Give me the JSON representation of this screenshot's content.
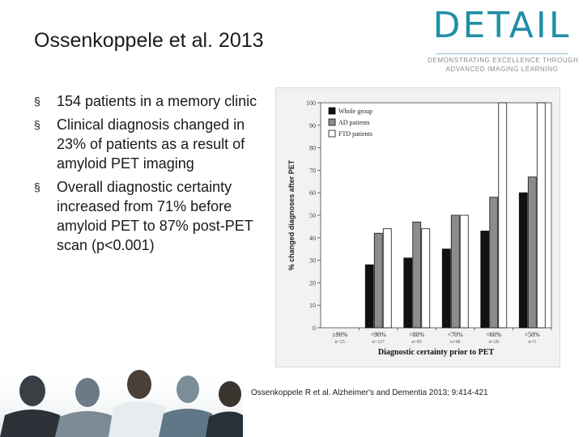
{
  "slide": {
    "title": "Ossenkoppele et al. 2013",
    "bullets": [
      "154 patients in a memory clinic",
      "Clinical diagnosis changed in 23% of patients as a result of amyloid PET imaging",
      "Overall diagnostic certainty increased from 71% before amyloid PET to 87% post-PET scan (p<0.001)"
    ],
    "bullet_marker": "§",
    "citation": "Ossenkoppele R et al. Alzheimer's and Dementia 2013; 9:414-421"
  },
  "logo": {
    "word": "DETAIL",
    "tagline_1": "DEMONSTRATING EXCELLENCE THROUGH",
    "tagline_2": "ADVANCED IMAGING LEARNING",
    "color": "#1f8fa6"
  },
  "chart_data": {
    "type": "bar",
    "xlabel": "Diagnostic certainty prior to PET",
    "ylabel": "% changed diagnoses after PET",
    "ylim": [
      0,
      100
    ],
    "yticks": [
      0,
      10,
      20,
      30,
      40,
      50,
      60,
      70,
      80,
      90,
      100
    ],
    "categories": [
      "≥90%",
      "<90%",
      "<80%",
      "<70%",
      "<60%",
      "<50%"
    ],
    "category_counts": [
      "n=25",
      "n=127",
      "n=85",
      "n=48",
      "n=28",
      "n=5"
    ],
    "legend_position": "top-left",
    "series": [
      {
        "name": "Whole group",
        "color": "#111111",
        "values": [
          0,
          28,
          31,
          35,
          43,
          60
        ]
      },
      {
        "name": "AD patients",
        "color": "#8c8c8c",
        "values": [
          0,
          42,
          47,
          50,
          58,
          67
        ]
      },
      {
        "name": "FTD patients",
        "color": "#ffffff",
        "values": [
          0,
          44,
          44,
          50,
          100,
          100
        ]
      }
    ]
  },
  "decor": {
    "people_image": "photo-of-medical-team-silhouettes"
  }
}
